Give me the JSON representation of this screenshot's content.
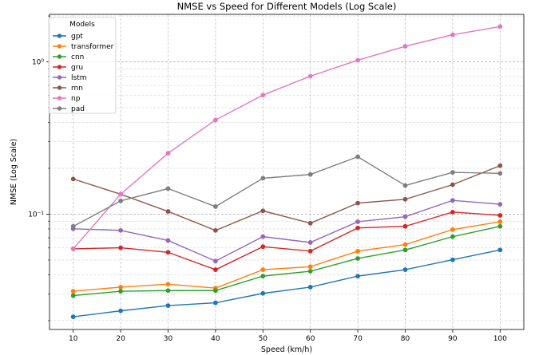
{
  "chart_data": {
    "type": "line",
    "title": "NMSE vs Speed for Different Models (Log Scale)",
    "xlabel": "Speed (km/h)",
    "ylabel": "NMSE (Log Scale)",
    "yscale": "log",
    "x": [
      10,
      20,
      30,
      40,
      50,
      60,
      70,
      80,
      90,
      100
    ],
    "xlim": [
      5,
      105
    ],
    "ylim": [
      0.0175,
      2.05
    ],
    "x_ticks": [
      "10",
      "20",
      "30",
      "40",
      "50",
      "60",
      "70",
      "80",
      "90",
      "100"
    ],
    "y_ticks": [
      {
        "value": 0.1,
        "label": "10⁻¹"
      },
      {
        "value": 1,
        "label": "10⁰"
      }
    ],
    "grid": true,
    "legend": {
      "title": "Models",
      "position": "top-left"
    },
    "series": [
      {
        "name": "gpt",
        "color": "#1f77b4",
        "values": [
          0.0212,
          0.0232,
          0.0251,
          0.0262,
          0.0302,
          0.0332,
          0.0392,
          0.0432,
          0.0502,
          0.0582
        ]
      },
      {
        "name": "transformer",
        "color": "#ff7f0e",
        "values": [
          0.0312,
          0.0332,
          0.0347,
          0.0327,
          0.0432,
          0.0452,
          0.0572,
          0.0632,
          0.0792,
          0.0892
        ]
      },
      {
        "name": "cnn",
        "color": "#2ca02c",
        "values": [
          0.0292,
          0.0312,
          0.0315,
          0.0315,
          0.0392,
          0.0422,
          0.0512,
          0.0582,
          0.0712,
          0.0832
        ]
      },
      {
        "name": "gru",
        "color": "#d62728",
        "values": [
          0.0592,
          0.0602,
          0.0562,
          0.0432,
          0.0612,
          0.0572,
          0.0812,
          0.0832,
          0.1032,
          0.0982
        ]
      },
      {
        "name": "lstm",
        "color": "#9467bd",
        "values": [
          0.0802,
          0.0782,
          0.0672,
          0.0492,
          0.0712,
          0.0652,
          0.0892,
          0.0962,
          0.1232,
          0.1162
        ]
      },
      {
        "name": "rnn",
        "color": "#8c564b",
        "values": [
          0.1702,
          0.1352,
          0.1042,
          0.0782,
          0.1052,
          0.0872,
          0.1182,
          0.1252,
          0.1562,
          0.2082
        ]
      },
      {
        "name": "np",
        "color": "#e377c2",
        "values": [
          0.0592,
          0.1352,
          0.2512,
          0.4152,
          0.6052,
          0.8052,
          1.0252,
          1.2652,
          1.5052,
          1.7052
        ]
      },
      {
        "name": "pad",
        "color": "#7f7f7f",
        "values": [
          0.0832,
          0.1222,
          0.1472,
          0.1122,
          0.1722,
          0.1822,
          0.2382,
          0.1542,
          0.1882,
          0.1852
        ]
      }
    ]
  }
}
